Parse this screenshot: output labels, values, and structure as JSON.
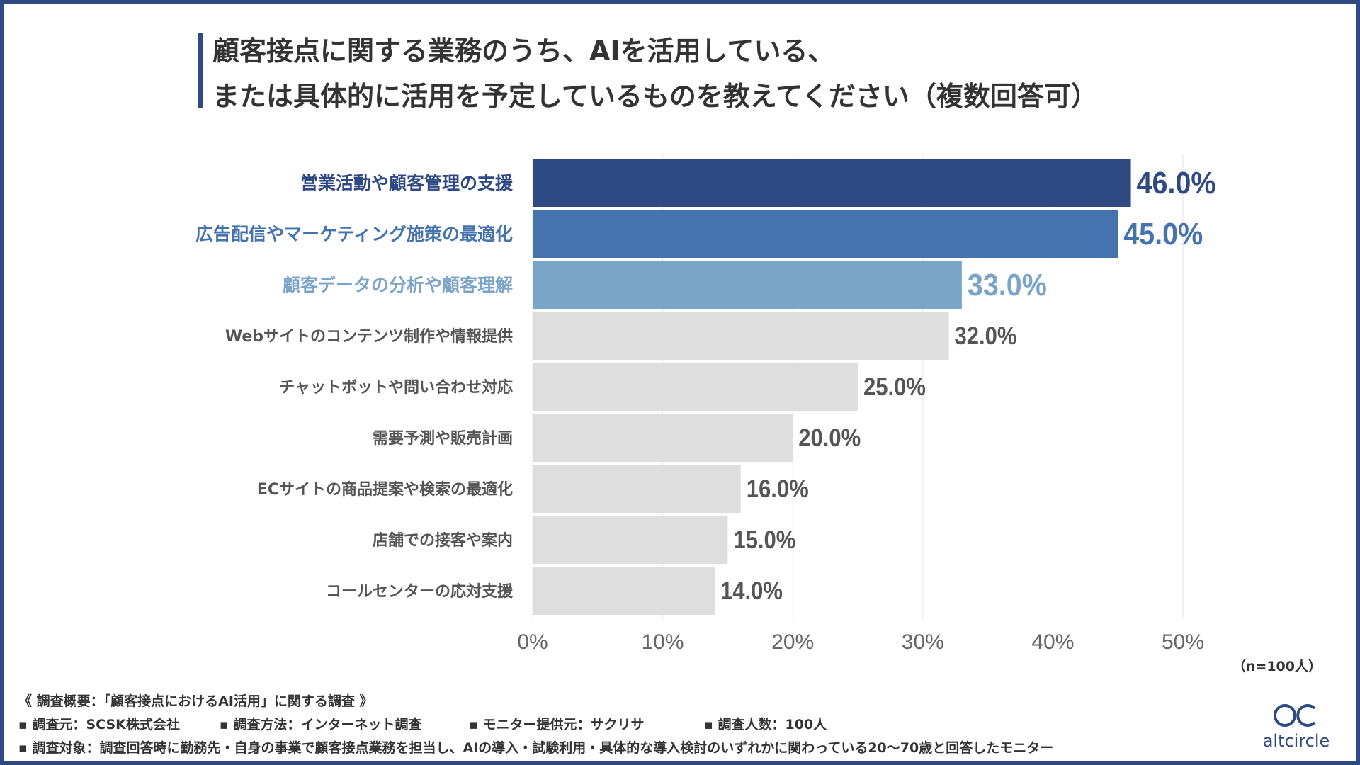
{
  "title": {
    "line1": "顧客接点に関する業務のうち、AIを活用している、",
    "line2": "または具体的に活用を予定しているものを教えてください（複数回答可）"
  },
  "chart_data": {
    "type": "bar",
    "orientation": "horizontal",
    "categories": [
      "営業活動や顧客管理の支援",
      "広告配信やマーケティング施策の最適化",
      "顧客データの分析や顧客理解",
      "Webサイトのコンテンツ制作や情報提供",
      "チャットボットや問い合わせ対応",
      "需要予測や販売計画",
      "ECサイトの商品提案や検索の最適化",
      "店舗での接客や案内",
      "コールセンターの応対支援"
    ],
    "values": [
      46.0,
      45.0,
      33.0,
      32.0,
      25.0,
      20.0,
      16.0,
      15.0,
      14.0
    ],
    "value_labels": [
      "46.0%",
      "45.0%",
      "33.0%",
      "32.0%",
      "25.0%",
      "20.0%",
      "16.0%",
      "15.0%",
      "14.0%"
    ],
    "bar_colors": [
      "#2f4a82",
      "#4573ad",
      "#7ba5c8",
      "#dedede",
      "#dedede",
      "#dedede",
      "#dedede",
      "#dedede",
      "#dedede"
    ],
    "label_colors": [
      "#2f4a82",
      "#4573ad",
      "#7ba5c8",
      "#555555",
      "#555555",
      "#555555",
      "#555555",
      "#555555",
      "#555555"
    ],
    "xlim": [
      0,
      50
    ],
    "ticks": [
      0,
      10,
      20,
      30,
      40,
      50
    ],
    "tick_labels": [
      "0%",
      "10%",
      "20%",
      "30%",
      "40%",
      "50%"
    ],
    "grid": true
  },
  "sample_note": "（n=100人）",
  "footer": {
    "summary": "《 調査概要：「顧客接点におけるAI活用」に関する調査 》",
    "items": [
      "▪ 調査元：SCSK株式会社",
      "▪ 調査方法：インターネット調査",
      "▪ モニター提供元：サクリサ",
      "▪ 調査人数：100人"
    ],
    "target": "▪ 調査対象：調査回答時に勤務先・自身の事業で顧客接点業務を担当し、AIの導入・試験利用・具体的な導入検討のいずれかに関わっている20〜70歳と回答したモニター"
  },
  "logo": {
    "text": "altcircle",
    "color": "#2f4a82"
  }
}
